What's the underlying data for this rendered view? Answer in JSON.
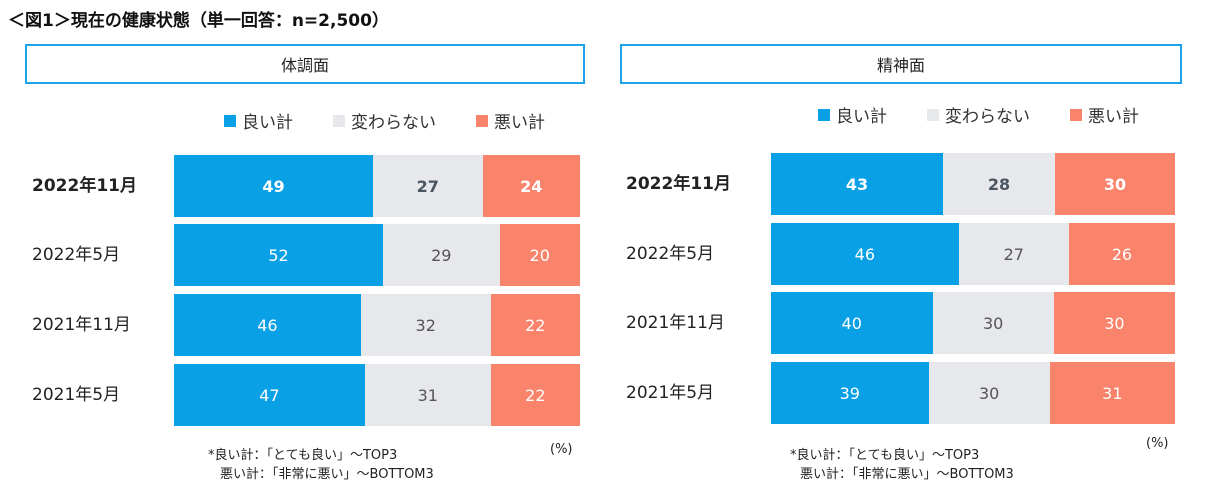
{
  "title": "＜図1＞現在の健康状態（単一回答：n=2,500）",
  "legend": [
    {
      "label": "良い計",
      "color": "#0aa0e6"
    },
    {
      "label": "変わらない",
      "color": "#e6e8ec"
    },
    {
      "label": "悪い計",
      "color": "#f9836b"
    }
  ],
  "unit": "(%)",
  "notes": {
    "line1": "*良い計：「とても良い」～TOP3",
    "line2": "悪い計：「非常に悪い」～BOTTOM3"
  },
  "chart_data": [
    {
      "type": "bar",
      "orientation": "horizontal-stacked-100",
      "title": "体調面",
      "categories": [
        "2022年11月",
        "2022年5月",
        "2021年11月",
        "2021年5月"
      ],
      "series": [
        {
          "name": "良い計",
          "values": [
            49,
            52,
            46,
            47
          ]
        },
        {
          "name": "変わらない",
          "values": [
            27,
            29,
            32,
            31
          ]
        },
        {
          "name": "悪い計",
          "values": [
            24,
            20,
            22,
            22
          ]
        }
      ]
    },
    {
      "type": "bar",
      "orientation": "horizontal-stacked-100",
      "title": "精神面",
      "categories": [
        "2022年11月",
        "2022年5月",
        "2021年11月",
        "2021年5月"
      ],
      "series": [
        {
          "name": "良い計",
          "values": [
            43,
            46,
            40,
            39
          ]
        },
        {
          "name": "変わらない",
          "values": [
            28,
            27,
            30,
            30
          ]
        },
        {
          "name": "悪い計",
          "values": [
            30,
            26,
            30,
            31
          ]
        }
      ]
    }
  ]
}
